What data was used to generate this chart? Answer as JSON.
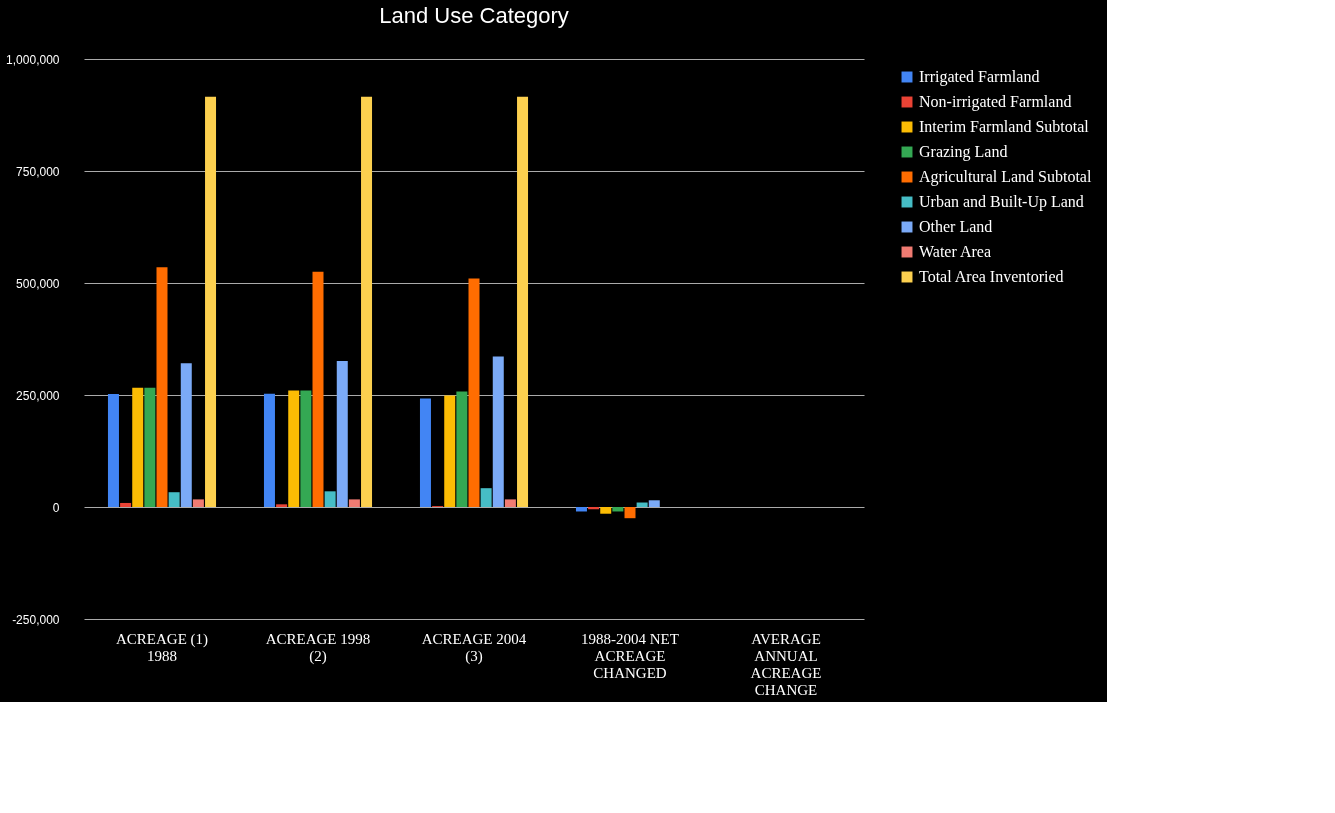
{
  "chart_data": {
    "type": "bar",
    "title": "Land Use Category",
    "categories": [
      "ACREAGE (1) 1988",
      "ACREAGE 1998 (2)",
      "ACREAGE 2004 (3)",
      "1988-2004 NET ACREAGE CHANGED",
      "AVERAGE ANNUAL ACREAGE CHANGE"
    ],
    "series": [
      {
        "name": "Irrigated Farmland",
        "color": "#4285f4",
        "values": [
          252000,
          253000,
          242000,
          -10000,
          0
        ]
      },
      {
        "name": "Non-irrigated Farmland",
        "color": "#ea4335",
        "values": [
          9000,
          6000,
          2000,
          -5000,
          0
        ]
      },
      {
        "name": "Interim Farmland Subtotal",
        "color": "#fbbc04",
        "values": [
          266000,
          260000,
          249000,
          -15000,
          0
        ]
      },
      {
        "name": "Grazing Land",
        "color": "#34a853",
        "values": [
          266000,
          260000,
          258000,
          -10000,
          0
        ]
      },
      {
        "name": "Agricultural Land Subtotal",
        "color": "#ff6d01",
        "values": [
          535000,
          525000,
          510000,
          -25000,
          0
        ]
      },
      {
        "name": "Urban and Built-Up Land",
        "color": "#46bdc6",
        "values": [
          33000,
          35000,
          42000,
          10000,
          0
        ]
      },
      {
        "name": "Other Land",
        "color": "#7baaf7",
        "values": [
          321000,
          326000,
          336000,
          15000,
          0
        ]
      },
      {
        "name": "Water Area",
        "color": "#f07b72",
        "values": [
          17000,
          17000,
          17000,
          0,
          0
        ]
      },
      {
        "name": "Total Area Inventoried",
        "color": "#fcd04f",
        "values": [
          916000,
          916000,
          916000,
          0,
          0
        ]
      }
    ],
    "ylim": [
      -250000,
      1000000
    ],
    "yticks": [
      {
        "value": -250000,
        "label": "-250,000"
      },
      0,
      {
        "value": 250000,
        "label": "250,000"
      },
      {
        "value": 500000,
        "label": "500,000"
      },
      {
        "value": 750000,
        "label": "750,000"
      },
      {
        "value": 1000000,
        "label": "1,000,000"
      }
    ],
    "grid": "y",
    "legend": "top right"
  }
}
